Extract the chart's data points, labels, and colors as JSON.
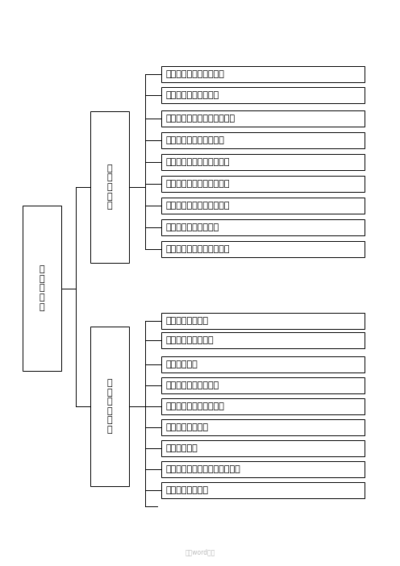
{
  "root_label": "岗\n位\n责\n任\n制",
  "group1_label": "岗\n位\n责\n任\n制",
  "group2_label": "质\n量\n管\n理\n制\n度",
  "group1_items_direct": [
    "项目经理岗位质量责任制",
    "副经理岗位质量责任制"
  ],
  "group1_sub_items": [
    "项目总工程师岗位质量责任制",
    "工程科长岗位质量责任制",
    "质量检查工程师岗位责任制",
    "机械设备员岗位质量责任制",
    "试验工程师岗位质量责任制",
    "领工员岗位质量责任制",
    "生产班组长岗位质量责任制"
  ],
  "group2_items_direct": [
    "施工测量复核制度",
    "施工图现场核对制度"
  ],
  "group2_sub_items": [
    "技术交底制度",
    "施工过程质量检查制度",
    "检验批隐蔽工程检查制度",
    "开工报告审批制度",
    "成品保护制度",
    "质量事故报告、调查和处理制度",
    "质量信息管理制度"
  ],
  "watermark": "精品word文档",
  "bg_color": "#ffffff",
  "box_edge_color": "#000000",
  "text_color": "#000000"
}
